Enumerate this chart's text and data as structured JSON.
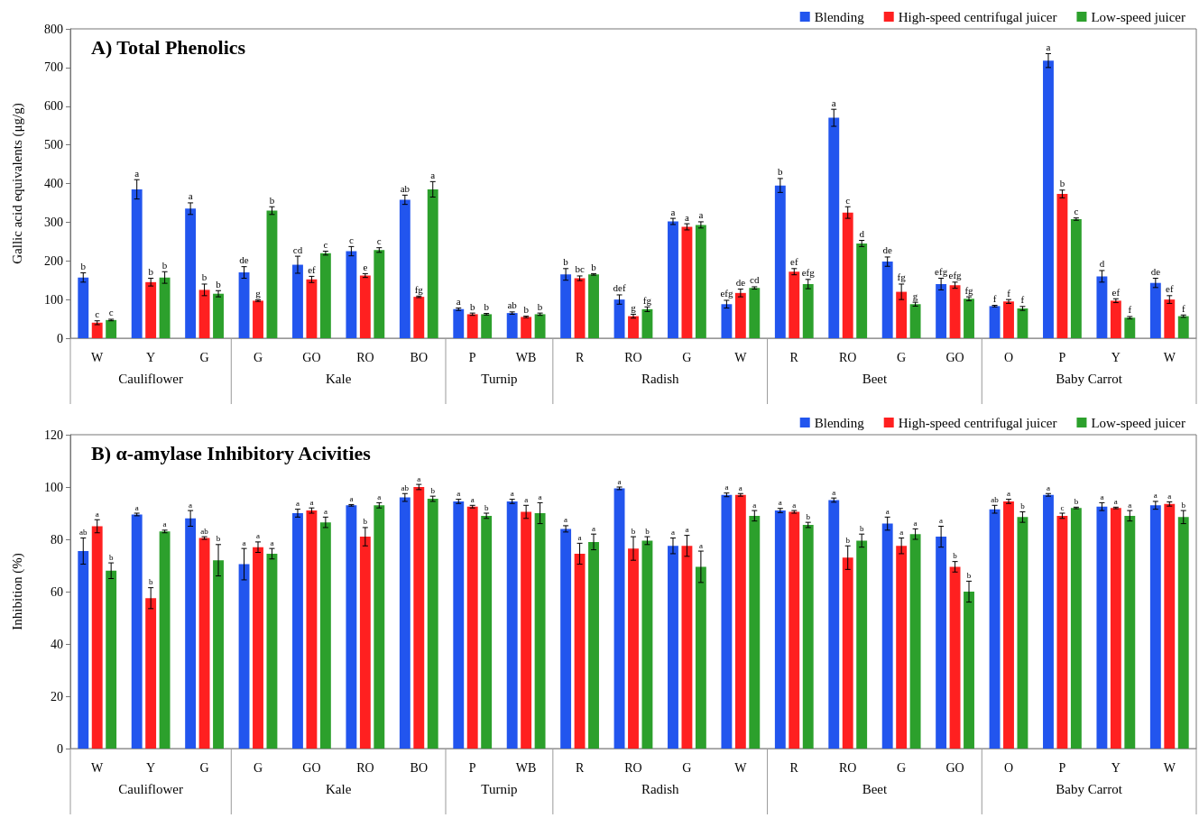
{
  "chart_data": [
    {
      "type": "bar",
      "title": "A) Total Phenolics",
      "ylabel": "Gallic acid equivalents (μg/g)",
      "categories": [
        "W",
        "Y",
        "G",
        "G",
        "GO",
        "RO",
        "BO",
        "P",
        "WB",
        "R",
        "RO",
        "G",
        "W",
        "R",
        "RO",
        "G",
        "GO",
        "O",
        "P",
        "Y",
        "W"
      ],
      "annotations": [
        "Cauliflower",
        "Kale",
        "Turnip",
        "Radish",
        "Beet",
        "Baby Carrot"
      ],
      "ylim": [
        0,
        800
      ],
      "yticks": [
        0,
        100,
        200,
        300,
        400,
        500,
        600,
        700,
        800
      ],
      "legend": "top right",
      "series": [
        {
          "name": "Blending",
          "color": "#2255ee",
          "values": [
            157,
            385,
            335,
            170,
            190,
            225,
            358,
            75,
            65,
            165,
            100,
            302,
            88,
            395,
            570,
            198,
            140,
            83,
            718,
            160,
            143
          ],
          "errors": [
            12,
            25,
            15,
            15,
            22,
            12,
            12,
            3,
            3,
            15,
            12,
            8,
            10,
            18,
            22,
            12,
            15,
            2,
            18,
            15,
            12
          ],
          "value_labels": [
            "b",
            "a",
            "a",
            "de",
            "cd",
            "c",
            "ab",
            "a",
            "ab",
            "b",
            "def",
            "a",
            "efg",
            "b",
            "a",
            "de",
            "efg",
            "f",
            "a",
            "d",
            "de"
          ]
        },
        {
          "name": "High-speed centrifugal juicer",
          "color": "#ff2020",
          "values": [
            40,
            145,
            125,
            97,
            152,
            162,
            107,
            62,
            55,
            155,
            57,
            288,
            117,
            172,
            325,
            120,
            137,
            95,
            373,
            97,
            100
          ],
          "errors": [
            5,
            10,
            15,
            2,
            8,
            5,
            2,
            3,
            2,
            6,
            5,
            8,
            10,
            8,
            15,
            20,
            8,
            5,
            10,
            5,
            10
          ],
          "value_labels": [
            "c",
            "b",
            "b",
            "g",
            "ef",
            "e",
            "fg",
            "b",
            "b",
            "bc",
            "g",
            "a",
            "de",
            "ef",
            "c",
            "fg",
            "efg",
            "f",
            "b",
            "ef",
            "ef"
          ]
        },
        {
          "name": "Low-speed juicer",
          "color": "#2ca02c",
          "values": [
            47,
            157,
            115,
            330,
            220,
            228,
            385,
            62,
            62,
            165,
            75,
            293,
            130,
            140,
            245,
            88,
            102,
            77,
            308,
            53,
            57
          ],
          "errors": [
            2,
            15,
            8,
            10,
            5,
            6,
            20,
            2,
            3,
            2,
            6,
            8,
            3,
            12,
            8,
            5,
            5,
            5,
            3,
            3,
            3
          ],
          "value_labels": [
            "c",
            "b",
            "b",
            "b",
            "c",
            "c",
            "a",
            "b",
            "b",
            "b",
            "fg",
            "a",
            "cd",
            "efg",
            "d",
            "g",
            "fg",
            "f",
            "c",
            "f",
            "f"
          ]
        }
      ]
    },
    {
      "type": "bar",
      "title": "B) α-amylase Inhibitory Acivities",
      "ylabel": "Inhibition (%)",
      "categories": [
        "W",
        "Y",
        "G",
        "G",
        "GO",
        "RO",
        "BO",
        "P",
        "WB",
        "R",
        "RO",
        "G",
        "W",
        "R",
        "RO",
        "G",
        "GO",
        "O",
        "P",
        "Y",
        "W"
      ],
      "annotations": [
        "Cauliflower",
        "Kale",
        "Turnip",
        "Radish",
        "Beet",
        "Baby Carrot"
      ],
      "ylim": [
        0,
        120
      ],
      "yticks": [
        0,
        20,
        40,
        60,
        80,
        100,
        120
      ],
      "legend": "top right",
      "series": [
        {
          "name": "Blending",
          "color": "#2255ee",
          "values": [
            75.5,
            89.5,
            88,
            70.5,
            90,
            93,
            96,
            94.5,
            94.5,
            84,
            99.5,
            77.5,
            97,
            91,
            95,
            86,
            81,
            91.5,
            97,
            92.5,
            93
          ],
          "errors": [
            5,
            0.5,
            3,
            6,
            1.5,
            0.3,
            1.5,
            0.8,
            0.8,
            1.2,
            0.5,
            3,
            0.7,
            0.8,
            0.8,
            2.5,
            4,
            1.5,
            0.5,
            1.5,
            1.5
          ],
          "value_labels": [
            "ab",
            "a",
            "a",
            "a",
            "a",
            "a",
            "ab",
            "a",
            "a",
            "a",
            "a",
            "a",
            "a",
            "a",
            "a",
            "a",
            "a",
            "ab",
            "a",
            "a",
            "a"
          ]
        },
        {
          "name": "High-speed centrifugal juicer",
          "color": "#ff2020",
          "values": [
            85,
            57.5,
            80.5,
            77,
            91,
            81,
            100,
            92.5,
            90.5,
            74.5,
            76.5,
            77.5,
            97,
            90.5,
            73,
            77.5,
            69.5,
            94.5,
            89,
            92,
            93.5
          ],
          "errors": [
            2.5,
            4,
            0.5,
            2,
            1,
            3.5,
            1,
            0.5,
            2.5,
            4,
            4.5,
            4,
            0.5,
            0.5,
            4.5,
            3,
            2,
            0.8,
            1,
            0.3,
            0.8
          ],
          "value_labels": [
            "a",
            "b",
            "ab",
            "a",
            "a",
            "b",
            "a",
            "a",
            "a",
            "a",
            "b",
            "a",
            "a",
            "a",
            "b",
            "a",
            "b",
            "a",
            "c",
            "a",
            "a"
          ]
        },
        {
          "name": "Low-speed juicer",
          "color": "#2ca02c",
          "values": [
            68,
            83,
            72,
            74.5,
            86.5,
            93,
            95.5,
            89,
            90,
            79,
            79.5,
            69.5,
            89,
            85.5,
            79.5,
            82,
            60,
            88.5,
            92,
            89,
            88.5
          ],
          "errors": [
            3,
            0.5,
            6,
            2,
            2,
            1,
            1,
            1,
            4,
            3,
            1.5,
            6,
            2,
            1,
            2.5,
            2,
            4,
            2,
            0.3,
            2,
            2.5
          ],
          "value_labels": [
            "b",
            "a",
            "b",
            "a",
            "a",
            "a",
            "b",
            "b",
            "a",
            "a",
            "b",
            "a",
            "a",
            "b",
            "b",
            "a",
            "b",
            "b",
            "b",
            "a",
            "b"
          ]
        }
      ]
    }
  ]
}
